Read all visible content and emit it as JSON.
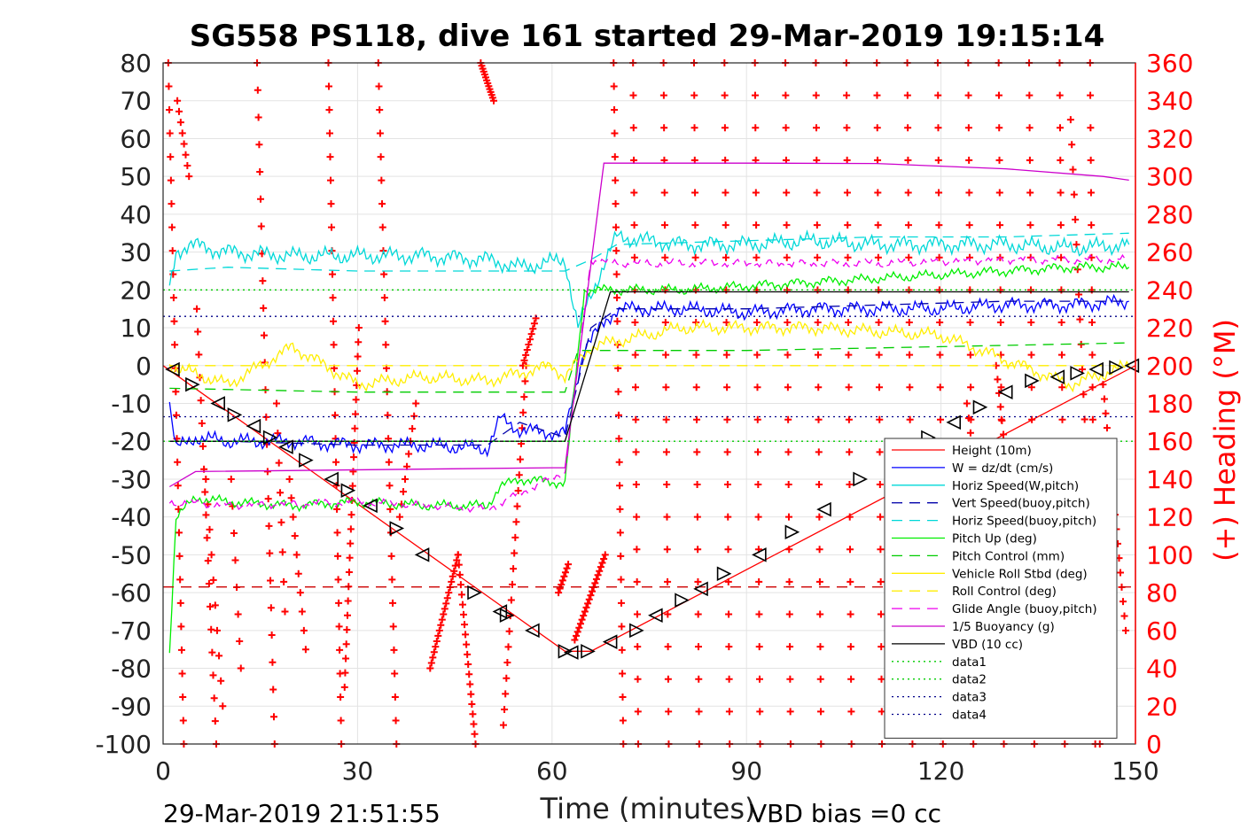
{
  "chart_data": {
    "type": "line",
    "title": "SG558 PS118, dive 161 started 29-Mar-2019 19:15:14",
    "xlabel": "Time (minutes)",
    "ylabel": "",
    "ylabel_right": "(+) Heading (°M)",
    "xlim": [
      0,
      150
    ],
    "ylim": [
      -100,
      80
    ],
    "ylim_right": [
      0,
      360
    ],
    "x_ticks": [
      "0",
      "30",
      "60",
      "90",
      "120",
      "150"
    ],
    "y_ticks": [
      "80",
      "70",
      "60",
      "50",
      "40",
      "30",
      "20",
      "10",
      "0",
      "-10",
      "-20",
      "-30",
      "-40",
      "-50",
      "-60",
      "-70",
      "-80",
      "-90",
      "-100"
    ],
    "y_ticks_right": [
      "360",
      "340",
      "320",
      "300",
      "280",
      "260",
      "240",
      "220",
      "200",
      "180",
      "160",
      "140",
      "120",
      "100",
      "80",
      "60",
      "40",
      "20",
      "0"
    ],
    "grid": true,
    "legend_position": "lower-right",
    "footer_left": "29-Mar-2019 21:51:55",
    "footer_right": "VBD bias =0 cc",
    "series": [
      {
        "name": "Height (10m)",
        "color": "#ff0000",
        "style": "solid",
        "x": [
          0,
          62,
          66,
          150
        ],
        "y": [
          0,
          -75.5,
          -75.5,
          0
        ]
      },
      {
        "name": "W = dz/dt (cm/s)",
        "color": "#0000ff",
        "style": "solid",
        "x": [
          1,
          2,
          5,
          10,
          20,
          30,
          40,
          50,
          52,
          55,
          62,
          65,
          70,
          80,
          90,
          100,
          110,
          120,
          130,
          140,
          149
        ],
        "y": [
          -10,
          -22,
          -19,
          -20,
          -20,
          -21,
          -21,
          -22,
          -14,
          -17,
          -18,
          5,
          15,
          15,
          14,
          15,
          15,
          15,
          16,
          16,
          17
        ]
      },
      {
        "name": "Horiz Speed(W,pitch)",
        "color": "#00d8d8",
        "style": "solid",
        "x": [
          1,
          2,
          4,
          10,
          20,
          30,
          40,
          50,
          55,
          62,
          64,
          68,
          70,
          80,
          90,
          100,
          110,
          120,
          130,
          140,
          149
        ],
        "y": [
          20,
          30,
          32,
          30,
          29,
          29,
          29,
          28,
          26,
          28,
          10,
          27,
          34,
          32,
          32,
          33,
          32,
          32,
          32,
          31,
          32
        ]
      },
      {
        "name": "Vert Speed(buoy,pitch)",
        "color": "#0000aa",
        "style": "dashed",
        "x": [
          1,
          10,
          30,
          50,
          55,
          62,
          66,
          70,
          90,
          110,
          130,
          149
        ],
        "y": [
          -20,
          -20,
          -21,
          -21,
          -15,
          -19,
          10,
          15,
          15,
          16,
          17,
          17
        ]
      },
      {
        "name": "Horiz Speed(buoy,pitch)",
        "color": "#00d8d8",
        "style": "dashed",
        "x": [
          1,
          10,
          30,
          50,
          62,
          66,
          70,
          90,
          110,
          130,
          149
        ],
        "y": [
          25,
          26,
          25,
          25,
          25,
          28,
          32,
          33,
          34,
          34,
          35
        ]
      },
      {
        "name": "Pitch Up (deg)",
        "color": "#00ee00",
        "style": "solid",
        "x": [
          1,
          2,
          5,
          10,
          20,
          30,
          40,
          50,
          52,
          55,
          62,
          65,
          70,
          80,
          90,
          100,
          110,
          120,
          130,
          140,
          149
        ],
        "y": [
          -75,
          -40,
          -35,
          -36,
          -37,
          -36,
          -37,
          -37,
          -32,
          -30,
          -31,
          20,
          20,
          20,
          21,
          22,
          23,
          24,
          25,
          26,
          26
        ]
      },
      {
        "name": "Pitch Control (mm)",
        "color": "#00cc00",
        "style": "dashed",
        "x": [
          1,
          30,
          62,
          64,
          90,
          120,
          149
        ],
        "y": [
          -6,
          -7,
          -7,
          4,
          4,
          5,
          6
        ]
      },
      {
        "name": "Vehicle Roll Stbd (deg)",
        "color": "#ffee00",
        "style": "solid",
        "x": [
          1,
          10,
          20,
          30,
          40,
          50,
          60,
          62,
          66,
          80,
          100,
          120,
          140,
          149
        ],
        "y": [
          0,
          -5,
          5,
          -5,
          -3,
          -4,
          0,
          -3,
          5,
          10,
          10,
          8,
          -5,
          0
        ]
      },
      {
        "name": "Roll Control (deg)",
        "color": "#ffee00",
        "style": "dashed",
        "x": [
          1,
          149
        ],
        "y": [
          0,
          0
        ]
      },
      {
        "name": "Glide Angle (buoy,pitch)",
        "color": "#ee00ee",
        "style": "dashed",
        "x": [
          1,
          10,
          30,
          50,
          62,
          66,
          70,
          90,
          110,
          130,
          149
        ],
        "y": [
          -36,
          -37,
          -36,
          -38,
          -28,
          28,
          27,
          27,
          27,
          28,
          28
        ]
      },
      {
        "name": "1/5 Buoyancy (g)",
        "color": "#cc00cc",
        "style": "solid",
        "x": [
          1,
          5,
          60,
          62,
          68,
          90,
          110,
          130,
          145,
          149
        ],
        "y": [
          -32,
          -28,
          -27,
          -27,
          53.5,
          53.5,
          53.4,
          52,
          50,
          49
        ]
      },
      {
        "name": "VBD (10 cc)",
        "color": "#000000",
        "style": "solid",
        "x": [
          1,
          62,
          69,
          149
        ],
        "y": [
          -20,
          -20,
          19.5,
          19.5
        ]
      },
      {
        "name": "data1",
        "color": "#00cc00",
        "style": "dotted",
        "x": [
          0,
          150
        ],
        "y": [
          -20,
          -20
        ]
      },
      {
        "name": "data2",
        "color": "#00cc00",
        "style": "dotted",
        "x": [
          0,
          150
        ],
        "y": [
          20,
          20
        ]
      },
      {
        "name": "data3",
        "color": "#000088",
        "style": "dotted",
        "x": [
          0,
          150
        ],
        "y": [
          13,
          13
        ]
      },
      {
        "name": "data4",
        "color": "#000088",
        "style": "dotted",
        "x": [
          0,
          150
        ],
        "y": [
          -13.5,
          -13.5
        ]
      }
    ],
    "heading_series": {
      "name": "Heading",
      "color": "#ff0000",
      "marker": "+",
      "axis": "right"
    },
    "reference_line": {
      "color": "#cc0000",
      "style": "dashed",
      "y": -58.5
    }
  }
}
